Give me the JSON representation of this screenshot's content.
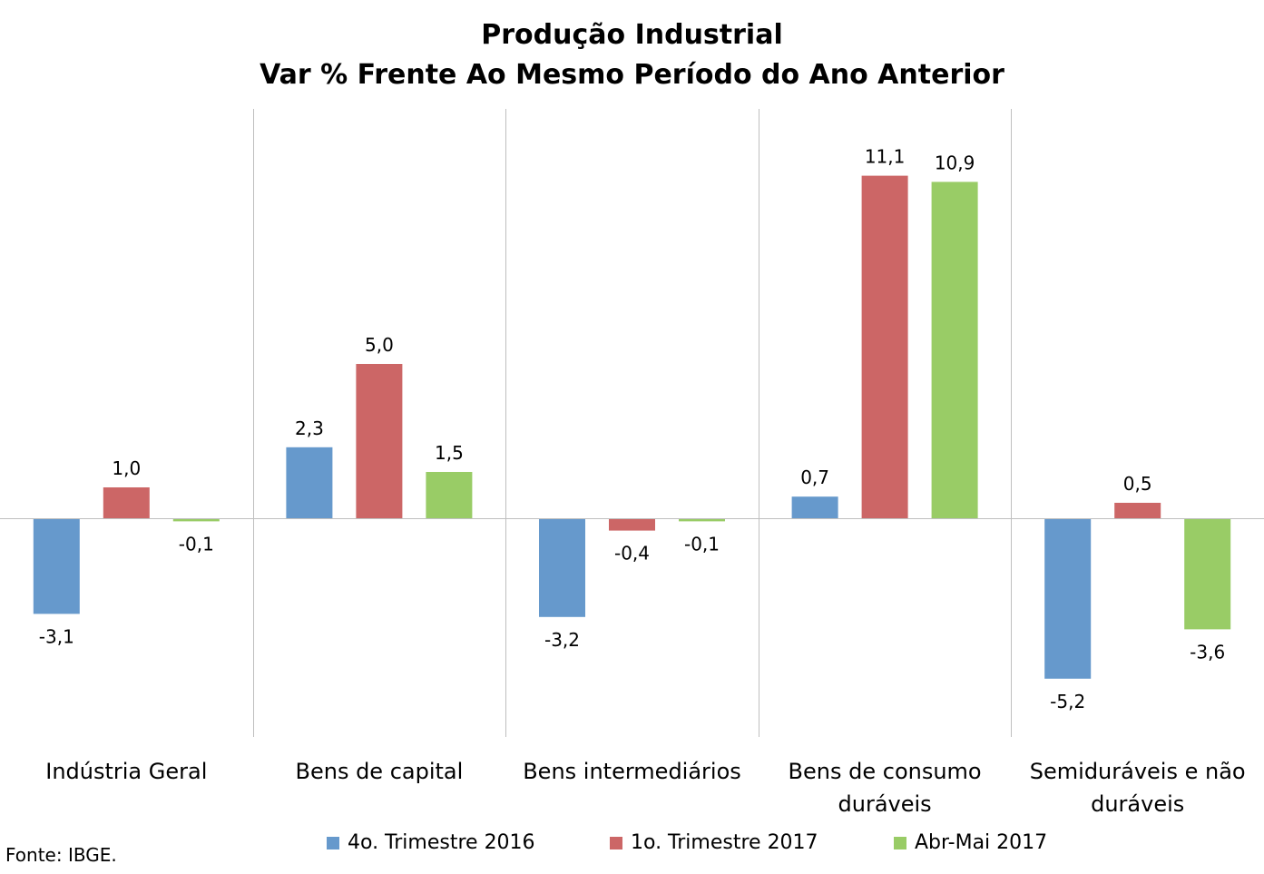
{
  "chart_data": {
    "type": "bar",
    "title": "Produção Industrial",
    "subtitle": "Var % Frente Ao Mesmo Período do Ano Anterior",
    "categories": [
      [
        "Indústria Geral"
      ],
      [
        "Bens de capital"
      ],
      [
        "Bens intermediários"
      ],
      [
        "Bens de consumo",
        "duráveis"
      ],
      [
        "Semiduráveis e não",
        "duráveis"
      ]
    ],
    "series": [
      {
        "name": "4o. Trimestre 2016",
        "color": "#6699CC",
        "values": [
          -3.1,
          2.3,
          -3.2,
          0.7,
          -5.2
        ],
        "labels": [
          "-3,1",
          "2,3",
          "-3,2",
          "0,7",
          "-5,2"
        ]
      },
      {
        "name": "1o. Trimestre 2017",
        "color": "#CC6666",
        "values": [
          1.0,
          5.0,
          -0.4,
          11.1,
          0.5
        ],
        "labels": [
          "1,0",
          "5,0",
          "-0,4",
          "11,1",
          "0,5"
        ]
      },
      {
        "name": "Abr-Mai 2017",
        "color": "#99CC66",
        "values": [
          -0.1,
          1.5,
          -0.1,
          10.9,
          -3.6
        ],
        "labels": [
          "-0,1",
          "1,5",
          "-0,1",
          "10,9",
          "-3,6"
        ]
      }
    ],
    "ylim": [
      -7,
      13
    ],
    "grid": false,
    "legend_position": "bottom"
  },
  "source": "Fonte: IBGE."
}
